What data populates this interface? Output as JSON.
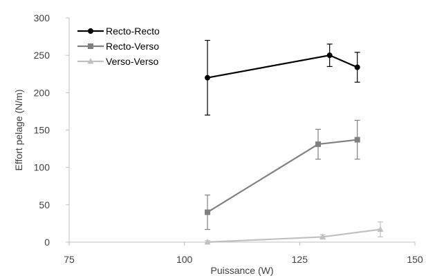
{
  "chart_data": {
    "type": "line",
    "xlabel": "Puissance (W)",
    "ylabel": "Effort pelage (N/m)",
    "xlim": [
      75,
      150
    ],
    "ylim": [
      0,
      300
    ],
    "x_ticks": [
      75,
      100,
      125,
      150
    ],
    "y_ticks": [
      0,
      50,
      100,
      150,
      200,
      250,
      300
    ],
    "grid": false,
    "legend_placement": "top-left",
    "series": [
      {
        "name": "Recto-Recto",
        "color": "#000000",
        "marker": "circle",
        "x": [
          105,
          131.5,
          137.5
        ],
        "y": [
          220,
          250,
          234
        ],
        "error": [
          50,
          15,
          20
        ]
      },
      {
        "name": "Recto-Verso",
        "color": "#808080",
        "marker": "square",
        "x": [
          105,
          129,
          137.5
        ],
        "y": [
          40,
          131,
          137
        ],
        "error": [
          23,
          20,
          26
        ]
      },
      {
        "name": "Verso-Verso",
        "color": "#c0c0c0",
        "marker": "triangle",
        "x": [
          105,
          130,
          142.5
        ],
        "y": [
          0,
          7,
          17
        ],
        "error": [
          2,
          3,
          10
        ]
      }
    ]
  }
}
